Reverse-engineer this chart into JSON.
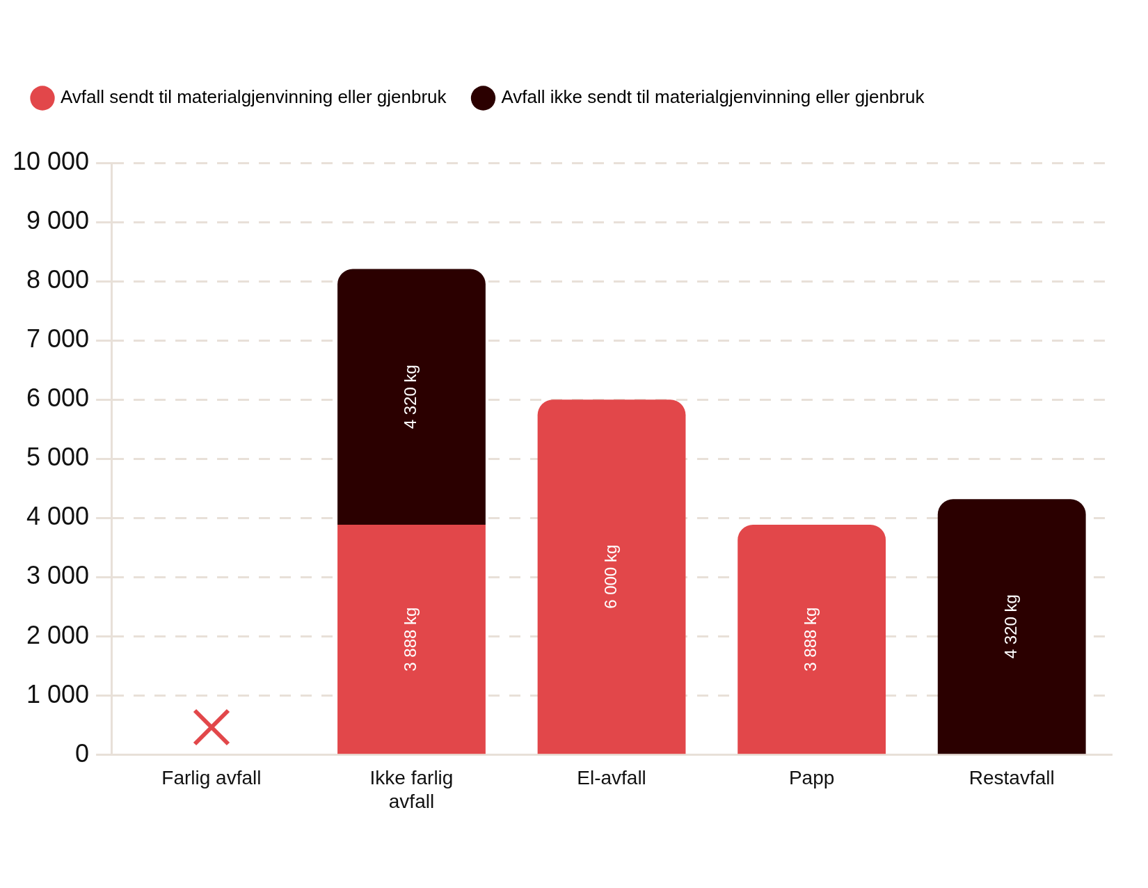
{
  "chart_data": {
    "type": "bar",
    "stacked": true,
    "categories": [
      "Farlig avfall",
      "Ikke farlig avfall",
      "El-avfall",
      "Papp",
      "Restavfall"
    ],
    "series": [
      {
        "name": "Avfall sendt til materialgjenvinning eller gjenbruk",
        "color": "#e2474a",
        "values": [
          null,
          3888,
          6000,
          3888,
          null
        ],
        "value_labels": [
          null,
          "3 888 kg",
          "6 000 kg",
          "3 888 kg",
          null
        ]
      },
      {
        "name": "Avfall ikke sendt til materialgjenvinning eller gjenbruk",
        "color": "#2b0000",
        "values": [
          null,
          4320,
          null,
          null,
          4320
        ],
        "value_labels": [
          null,
          "4 320 kg",
          null,
          null,
          "4 320 kg"
        ]
      }
    ],
    "ylim": [
      0,
      10000
    ],
    "yticks": [
      {
        "value": 0,
        "label": "0"
      },
      {
        "value": 1000,
        "label": "1 000"
      },
      {
        "value": 2000,
        "label": "2 000"
      },
      {
        "value": 3000,
        "label": "3 000"
      },
      {
        "value": 4000,
        "label": "4 000"
      },
      {
        "value": 5000,
        "label": "5 000"
      },
      {
        "value": 6000,
        "label": "6 000"
      },
      {
        "value": 7000,
        "label": "7 000"
      },
      {
        "value": 8000,
        "label": "8 000"
      },
      {
        "value": 9000,
        "label": "9 000"
      },
      {
        "value": 10000,
        "label": "10 000"
      }
    ],
    "grid": "y",
    "legend": "top"
  }
}
